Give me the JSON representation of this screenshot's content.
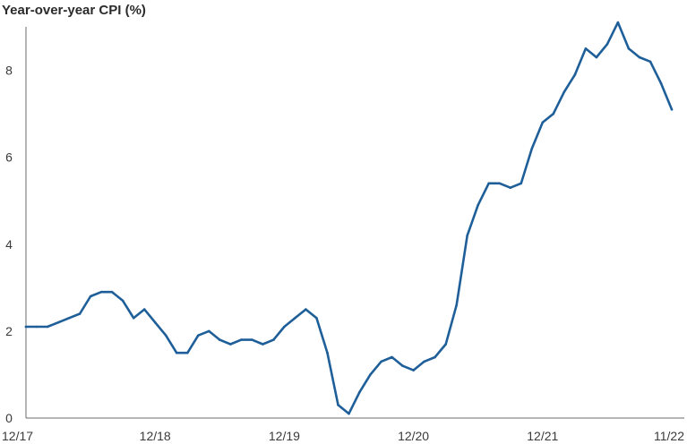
{
  "chart_data": {
    "type": "line",
    "title": "Year-over-year CPI (%)",
    "xlabel": "",
    "ylabel": "",
    "ylim": [
      0,
      9
    ],
    "y_ticks": [
      0,
      2,
      4,
      6,
      8
    ],
    "x_ticks": [
      {
        "index": 0,
        "label": "12/17"
      },
      {
        "index": 12,
        "label": "12/18"
      },
      {
        "index": 24,
        "label": "12/19"
      },
      {
        "index": 36,
        "label": "12/20"
      },
      {
        "index": 48,
        "label": "12/21"
      },
      {
        "index": 59,
        "label": "11/22"
      }
    ],
    "grid": false,
    "line_color": "#1f5f99",
    "series": [
      {
        "values": [
          2.1,
          2.1,
          2.1,
          2.2,
          2.3,
          2.4,
          2.8,
          2.9,
          2.9,
          2.7,
          2.3,
          2.5,
          2.2,
          1.9,
          1.5,
          1.5,
          1.9,
          2.0,
          1.8,
          1.7,
          1.8,
          1.8,
          1.7,
          1.8,
          2.1,
          2.3,
          2.5,
          2.3,
          1.5,
          0.3,
          0.1,
          0.6,
          1.0,
          1.3,
          1.4,
          1.2,
          1.1,
          1.3,
          1.4,
          1.7,
          2.6,
          4.2,
          4.9,
          5.4,
          5.4,
          5.3,
          5.4,
          6.2,
          6.8,
          7.0,
          7.5,
          7.9,
          8.5,
          8.3,
          8.6,
          9.1,
          8.5,
          8.3,
          8.2,
          7.7,
          7.1
        ]
      }
    ]
  }
}
